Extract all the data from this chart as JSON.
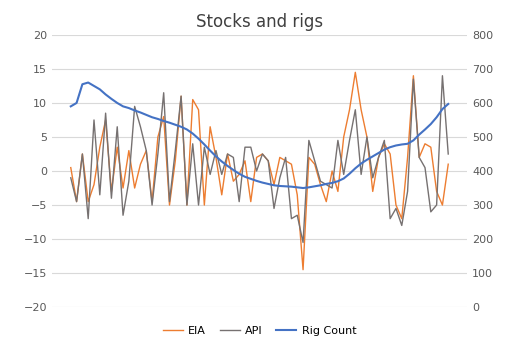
{
  "title": "Stocks and rigs",
  "eia": [
    0.5,
    -4.5,
    2.5,
    -4.5,
    -2,
    3.5,
    7.5,
    -3,
    3.5,
    -2.5,
    3,
    -2.5,
    1,
    3,
    -4.5,
    5,
    8,
    -5,
    1.5,
    11,
    -5,
    10.5,
    9,
    -5,
    6.5,
    2,
    -3.5,
    2.5,
    -1.5,
    -0.5,
    1.5,
    -4.5,
    2,
    2.5,
    1.5,
    -2,
    2,
    1.5,
    1,
    -3.5,
    -14.5,
    2,
    1,
    -2,
    -4.5,
    0,
    -3,
    5,
    9,
    14.5,
    9,
    5,
    -3,
    2,
    4,
    2.5,
    -5,
    -7,
    2,
    14,
    2,
    4,
    3.5,
    -3,
    -5,
    1
  ],
  "api": [
    -1,
    -4.5,
    2.5,
    -7,
    7.5,
    -3.5,
    8.5,
    -4,
    6.5,
    -6.5,
    -1.5,
    9.5,
    6.5,
    3,
    -5,
    2.5,
    11.5,
    -4.5,
    3,
    11,
    -5,
    4,
    -5,
    3.5,
    -0.5,
    3,
    -0.5,
    2.5,
    2,
    -4.5,
    3.5,
    3.5,
    0,
    2.5,
    1.5,
    -5.5,
    -1,
    2,
    -7,
    -6.5,
    -10.5,
    4.5,
    1.5,
    -1.5,
    -2,
    -2.5,
    4.5,
    -0.5,
    4.5,
    9,
    -0.5,
    5,
    -1,
    2,
    4.5,
    -7,
    -5.5,
    -8,
    -3,
    13.5,
    2,
    0.5,
    -6,
    -5,
    14,
    2.5
  ],
  "rig_count": [
    590,
    600,
    655,
    660,
    650,
    640,
    625,
    612,
    600,
    590,
    585,
    578,
    572,
    565,
    558,
    553,
    547,
    542,
    536,
    530,
    522,
    510,
    495,
    478,
    460,
    443,
    428,
    415,
    403,
    392,
    383,
    377,
    371,
    366,
    362,
    358,
    356,
    355,
    354,
    352,
    350,
    352,
    355,
    358,
    362,
    365,
    370,
    378,
    392,
    408,
    422,
    433,
    443,
    453,
    463,
    470,
    475,
    478,
    480,
    490,
    507,
    522,
    538,
    558,
    582,
    597
  ],
  "left_ylim": [
    -20,
    20
  ],
  "right_ylim": [
    0,
    800
  ],
  "left_yticks": [
    -20,
    -15,
    -10,
    -5,
    0,
    5,
    10,
    15,
    20
  ],
  "right_yticks": [
    0,
    100,
    200,
    300,
    400,
    500,
    600,
    700,
    800
  ],
  "eia_color": "#ED7D31",
  "api_color": "#767171",
  "rig_color": "#4472C4",
  "legend_labels": [
    "EIA",
    "API",
    "Rig Count"
  ],
  "grid_color": "#D9D9D9",
  "bg_color": "#FFFFFF",
  "title_fontsize": 12,
  "tick_fontsize": 8,
  "legend_fontsize": 8
}
